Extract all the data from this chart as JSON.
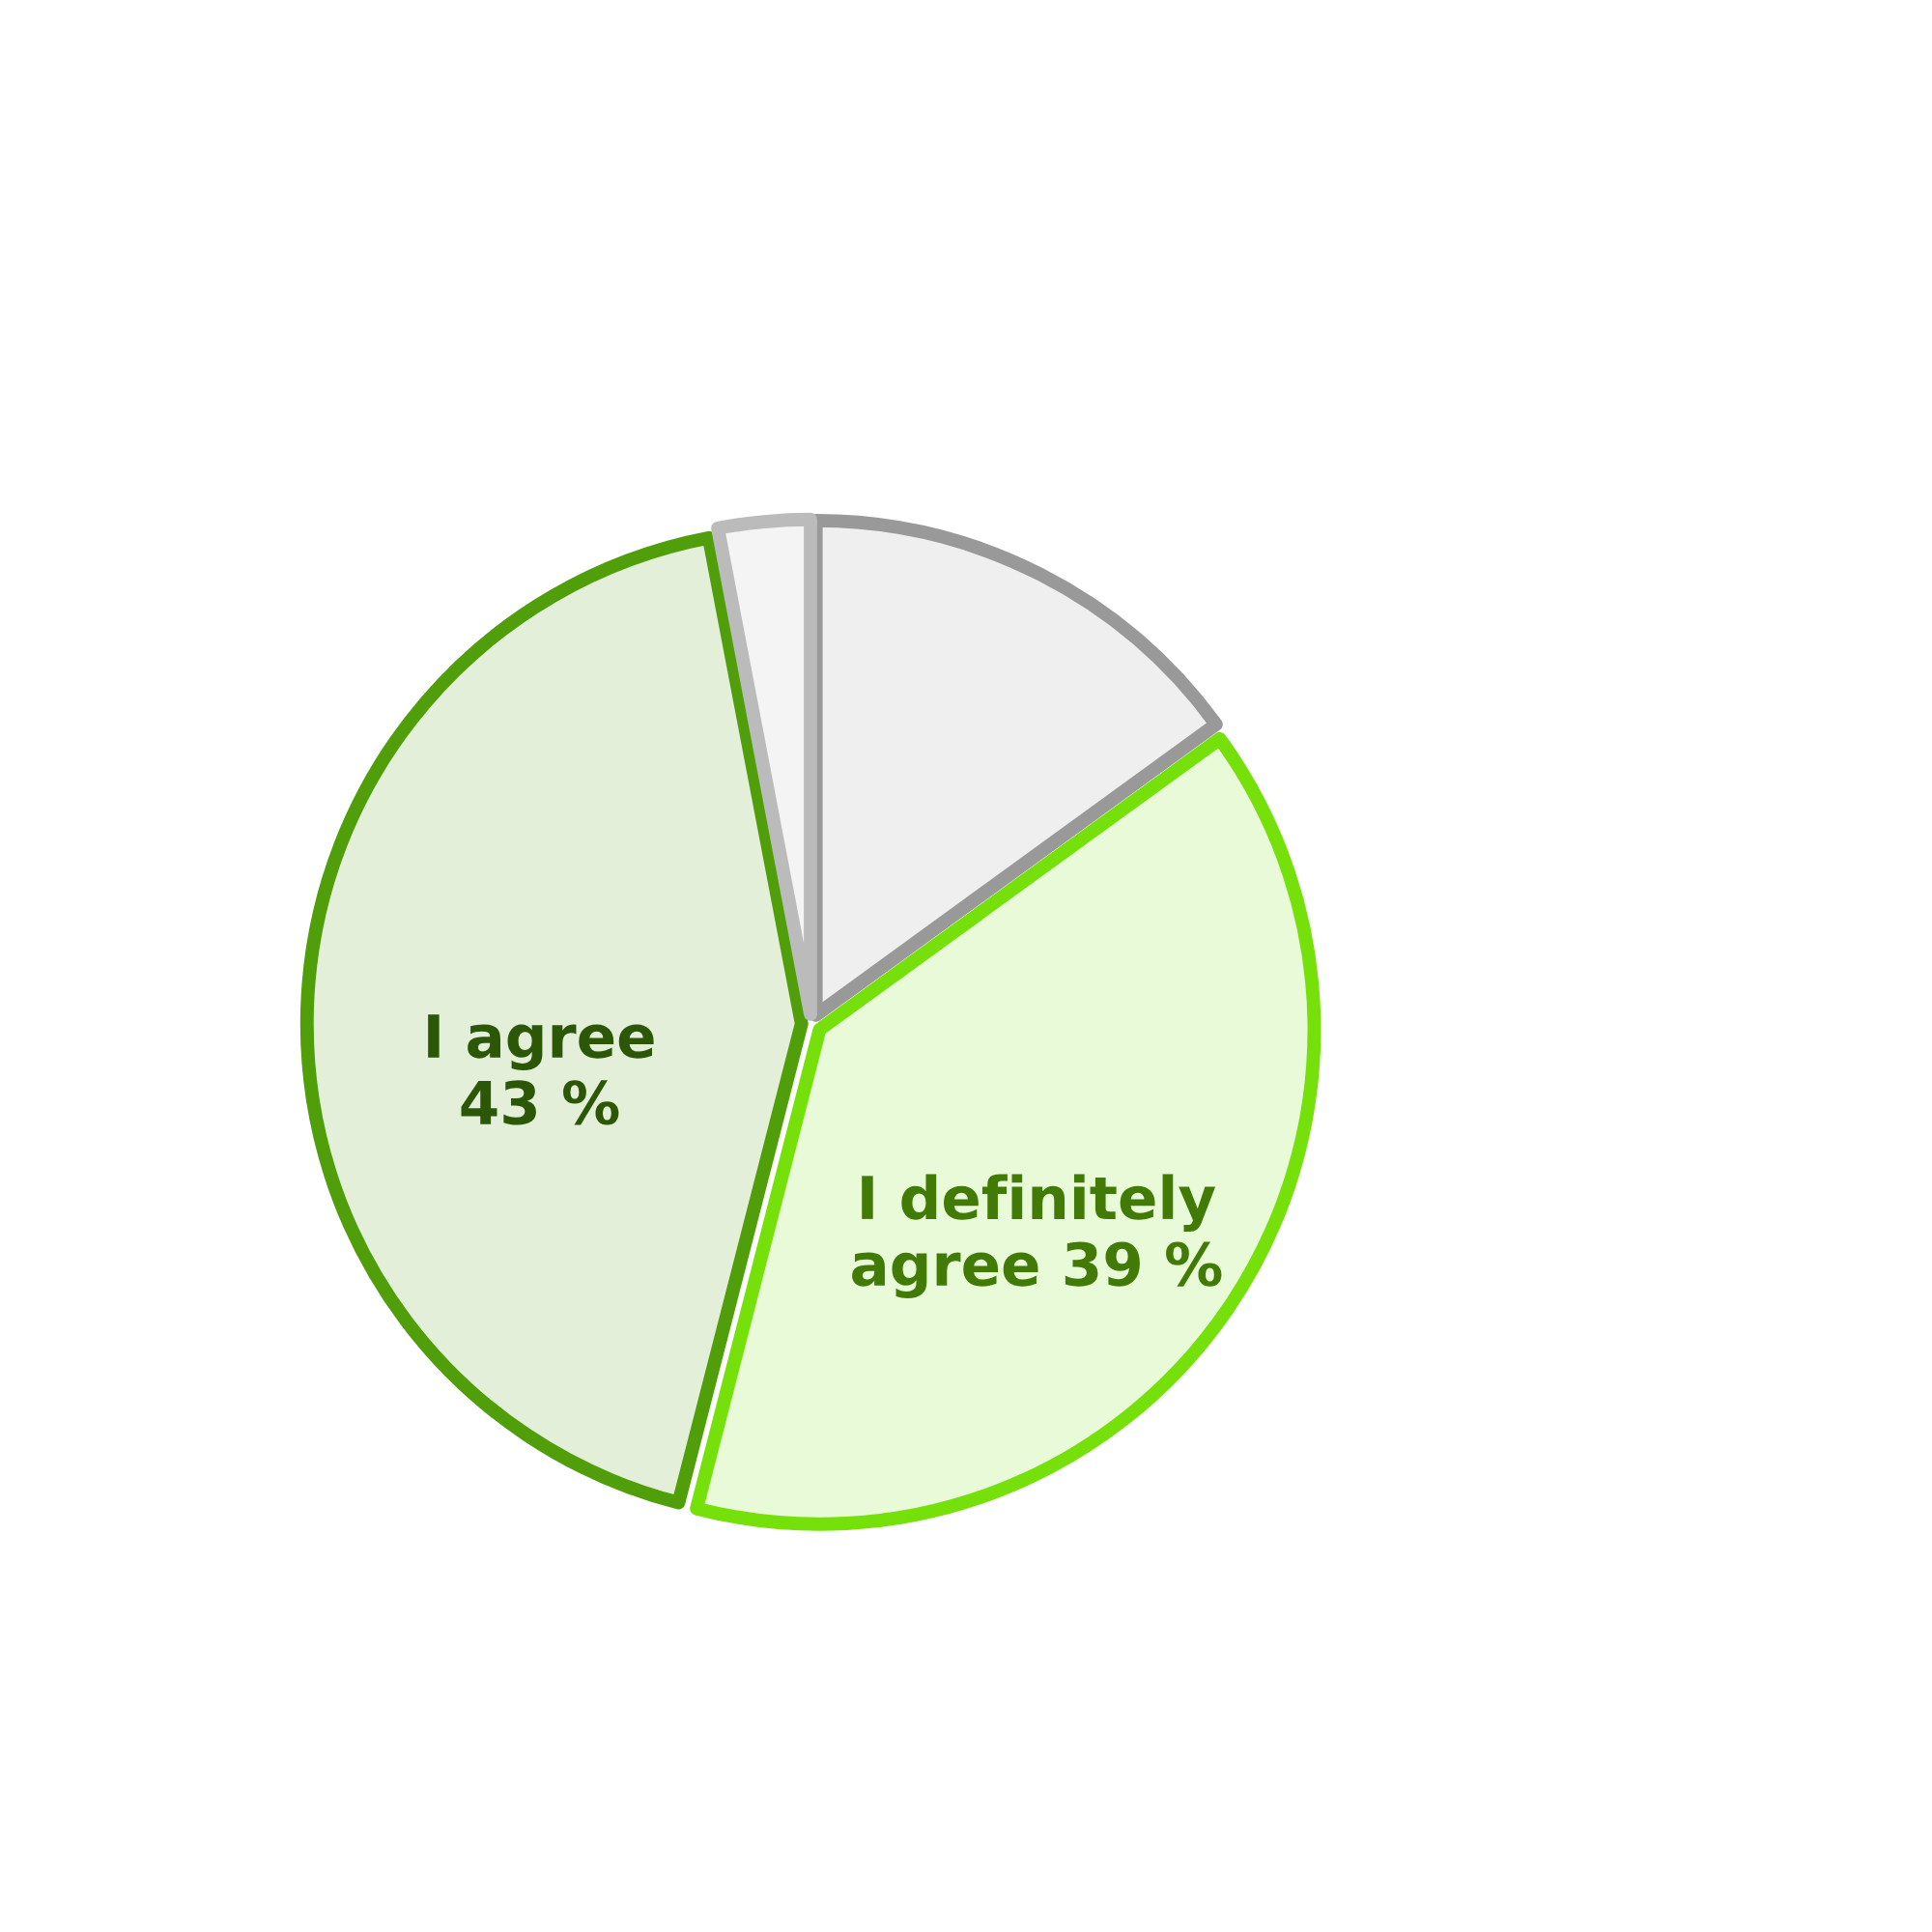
{
  "chart_data": {
    "type": "pie",
    "categories": [
      null,
      "I definitely agree",
      "I agree",
      null
    ],
    "values": [
      15,
      39,
      43,
      3
    ],
    "value_labels": [
      null,
      "39 %",
      "43 %",
      null
    ],
    "colors": [
      "#999999",
      "#76e00a",
      "#4f9e0a",
      "#bbbbbb"
    ]
  }
}
